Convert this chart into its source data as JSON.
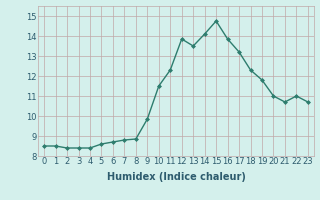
{
  "x": [
    0,
    1,
    2,
    3,
    4,
    5,
    6,
    7,
    8,
    9,
    10,
    11,
    12,
    13,
    14,
    15,
    16,
    17,
    18,
    19,
    20,
    21,
    22,
    23
  ],
  "y": [
    8.5,
    8.5,
    8.4,
    8.4,
    8.4,
    8.6,
    8.7,
    8.8,
    8.85,
    9.85,
    11.5,
    12.3,
    13.85,
    13.5,
    14.1,
    14.75,
    13.85,
    13.2,
    12.3,
    11.8,
    11.0,
    10.7,
    11.0,
    10.7
  ],
  "line_color": "#2e7d6e",
  "marker": "D",
  "marker_size": 2.0,
  "bg_color": "#d4f0ec",
  "grid_color": "#c0a8a8",
  "xlabel": "Humidex (Indice chaleur)",
  "ylim": [
    8,
    15.5
  ],
  "xlim": [
    -0.5,
    23.5
  ],
  "yticks": [
    8,
    9,
    10,
    11,
    12,
    13,
    14,
    15
  ],
  "xticks": [
    0,
    1,
    2,
    3,
    4,
    5,
    6,
    7,
    8,
    9,
    10,
    11,
    12,
    13,
    14,
    15,
    16,
    17,
    18,
    19,
    20,
    21,
    22,
    23
  ],
  "xlabel_fontsize": 7,
  "tick_fontsize": 6,
  "line_width": 1.0,
  "title_color": "#2e5c6e",
  "tick_color": "#2e5c6e"
}
